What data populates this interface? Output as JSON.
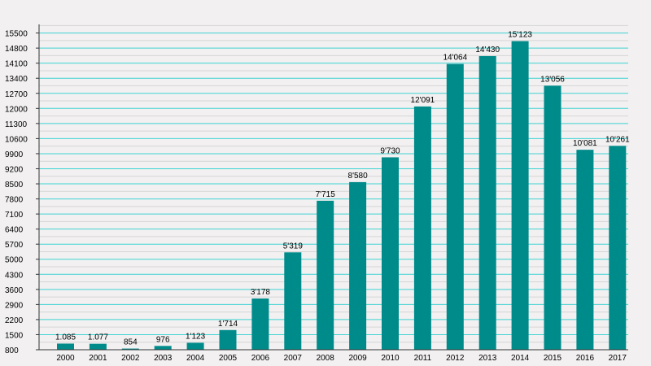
{
  "chart_data": {
    "type": "bar",
    "title": "",
    "xlabel": "",
    "ylabel": "",
    "categories": [
      "2000",
      "2001",
      "2002",
      "2003",
      "2004",
      "2005",
      "2006",
      "2007",
      "2008",
      "2009",
      "2010",
      "2011",
      "2012",
      "2013",
      "2014",
      "2015",
      "2016",
      "2017"
    ],
    "values": [
      1085,
      1077,
      854,
      976,
      1123,
      1714,
      3178,
      5319,
      7715,
      8580,
      9730,
      12091,
      14064,
      14430,
      15123,
      13056,
      10081,
      10261
    ],
    "value_labels": [
      "1.085",
      "1.077",
      "854",
      "976",
      "1'123",
      "1'714",
      "3'178",
      "5'319",
      "7'715",
      "8'580",
      "9'730",
      "12'091",
      "14'064",
      "14'430",
      "15'123",
      "13'056",
      "10'081",
      "10'261"
    ],
    "ylim": [
      800,
      15900
    ],
    "yticks": [
      800,
      1500,
      2200,
      2900,
      3600,
      4300,
      5000,
      5700,
      6400,
      7100,
      7800,
      8500,
      9200,
      9900,
      10600,
      11300,
      12000,
      12700,
      13400,
      14100,
      14800,
      15500
    ],
    "grid": true,
    "colors": {
      "bar": "#008b8b",
      "grid_major": "#3fd3d3",
      "grid_minor": "#d6d6d6",
      "background": "#f2f0f0",
      "axis": "#333333"
    }
  }
}
